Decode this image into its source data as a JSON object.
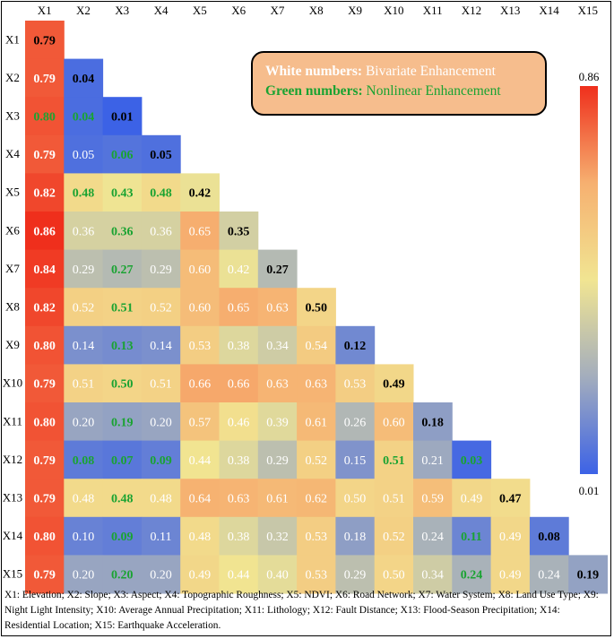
{
  "chart_data": {
    "type": "heatmap",
    "columns": [
      "X1",
      "X2",
      "X3",
      "X4",
      "X5",
      "X6",
      "X7",
      "X8",
      "X9",
      "X10",
      "X11",
      "X12",
      "X13",
      "X14",
      "X15"
    ],
    "rows": [
      "X1",
      "X2",
      "X3",
      "X4",
      "X5",
      "X6",
      "X7",
      "X8",
      "X9",
      "X10",
      "X11",
      "X12",
      "X13",
      "X14",
      "X15"
    ],
    "values": [
      [
        "0.79"
      ],
      [
        "0.79",
        "0.04"
      ],
      [
        "0.80",
        "0.04",
        "0.01"
      ],
      [
        "0.79",
        "0.05",
        "0.06",
        "0.05"
      ],
      [
        "0.82",
        "0.48",
        "0.43",
        "0.48",
        "0.42"
      ],
      [
        "0.86",
        "0.36",
        "0.36",
        "0.36",
        "0.65",
        "0.35"
      ],
      [
        "0.84",
        "0.29",
        "0.27",
        "0.29",
        "0.60",
        "0.42",
        "0.27"
      ],
      [
        "0.82",
        "0.52",
        "0.51",
        "0.52",
        "0.60",
        "0.65",
        "0.63",
        "0.50"
      ],
      [
        "0.80",
        "0.14",
        "0.13",
        "0.14",
        "0.53",
        "0.38",
        "0.34",
        "0.54",
        "0.12"
      ],
      [
        "0.79",
        "0.51",
        "0.50",
        "0.51",
        "0.66",
        "0.66",
        "0.63",
        "0.63",
        "0.53",
        "0.49"
      ],
      [
        "0.80",
        "0.20",
        "0.19",
        "0.20",
        "0.57",
        "0.46",
        "0.39",
        "0.61",
        "0.26",
        "0.60",
        "0.18"
      ],
      [
        "0.79",
        "0.08",
        "0.07",
        "0.09",
        "0.44",
        "0.38",
        "0.29",
        "0.52",
        "0.15",
        "0.51",
        "0.21",
        "0.03"
      ],
      [
        "0.79",
        "0.48",
        "0.48",
        "0.48",
        "0.64",
        "0.63",
        "0.61",
        "0.62",
        "0.50",
        "0.51",
        "0.59",
        "0.49",
        "0.47"
      ],
      [
        "0.80",
        "0.10",
        "0.09",
        "0.11",
        "0.48",
        "0.38",
        "0.32",
        "0.53",
        "0.18",
        "0.52",
        "0.24",
        "0.11",
        "0.49",
        "0.08"
      ],
      [
        "0.79",
        "0.20",
        "0.20",
        "0.20",
        "0.49",
        "0.44",
        "0.40",
        "0.53",
        "0.29",
        "0.50",
        "0.34",
        "0.24",
        "0.49",
        "0.24",
        "0.19"
      ]
    ],
    "nonlinear": [
      [],
      [],
      [
        0,
        1
      ],
      [
        2
      ],
      [
        1,
        2,
        3
      ],
      [
        2
      ],
      [
        2
      ],
      [
        2
      ],
      [
        2
      ],
      [
        2
      ],
      [
        2
      ],
      [
        1,
        2,
        3,
        9,
        11
      ],
      [
        2
      ],
      [
        2,
        11
      ],
      [
        2,
        11
      ]
    ],
    "scale": {
      "min": 0.01,
      "max": 0.86,
      "min_label": "0.01",
      "max_label": "0.86"
    },
    "colors": {
      "low": "#3c62e6",
      "mid_low": "#a3adbd",
      "mid": "#f1e592",
      "mid_high": "#f6b070",
      "high": "#ef2f1c",
      "white_text": "#ffffff",
      "green_text": "#1aa332",
      "diag_text": "#000000"
    }
  },
  "legend": {
    "white_key": "White numbers:",
    "white_val": "Bivariate Enhancement",
    "green_key": "Green numbers:",
    "green_val": "Nonlinear Enhancement"
  },
  "caption": "X1: Elevation; X2: Slope; X3: Aspect; X4: Topographic Roughness; X5: NDVI; X6: Road Network; X7: Water System; X8: Land Use Type; X9: Night Light Intensity; X10: Average Annual Precipitation; X11: Lithology; X12: Fault Distance; X13: Flood-Season Precipitation; X14: Residential Location; X15: Earthquake Acceleration."
}
